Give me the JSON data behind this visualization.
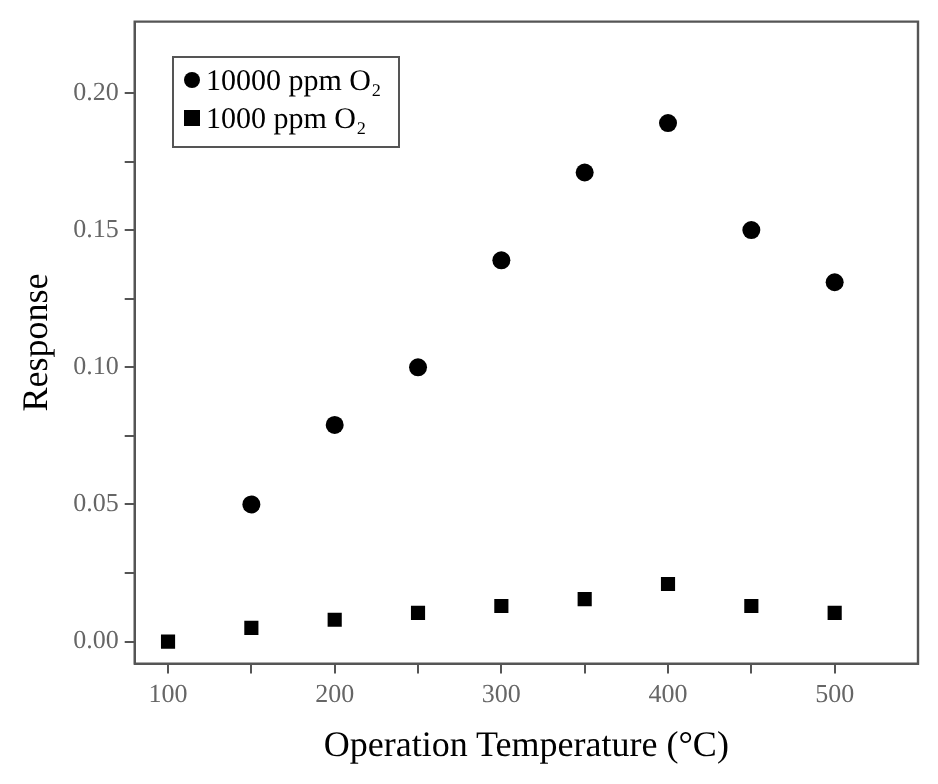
{
  "chart_data": {
    "type": "scatter",
    "xlabel": "Operation Temperature (°C)",
    "ylabel": "Response",
    "xlim": [
      80,
      550
    ],
    "ylim": [
      -0.008,
      0.226
    ],
    "xticks": [
      100,
      {
        "value": 150,
        "label": null
      },
      200,
      {
        "value": 250,
        "label": null
      },
      300,
      {
        "value": 350,
        "label": null
      },
      400,
      {
        "value": 450,
        "label": null
      },
      500
    ],
    "yticks": [
      "0.00",
      {
        "value": 0.025,
        "label": null
      },
      {
        "value": 0.05,
        "label": "0.05"
      },
      {
        "value": 0.075,
        "label": null
      },
      {
        "value": 0.1,
        "label": "0.10"
      },
      {
        "value": 0.125,
        "label": null
      },
      {
        "value": 0.15,
        "label": "0.15"
      },
      {
        "value": 0.175,
        "label": null
      },
      {
        "value": 0.2,
        "label": "0.20"
      }
    ],
    "grid": false,
    "legend": "top left",
    "series": [
      {
        "name": "10000 ppm O₂",
        "color": "#000000",
        "marker": "circle",
        "x": [
          150,
          200,
          250,
          300,
          350,
          400,
          450,
          500
        ],
        "values": [
          0.05,
          0.079,
          0.1,
          0.139,
          0.171,
          0.189,
          0.15,
          0.131
        ]
      },
      {
        "name": "1000 ppm O₂",
        "color": "#000000",
        "marker": "square",
        "x": [
          100,
          150,
          200,
          250,
          300,
          350,
          400,
          450,
          500
        ],
        "values": [
          0,
          0.005,
          0.008,
          0.0105,
          0.013,
          0.0155,
          0.021,
          0.013,
          0.0105
        ]
      }
    ]
  }
}
